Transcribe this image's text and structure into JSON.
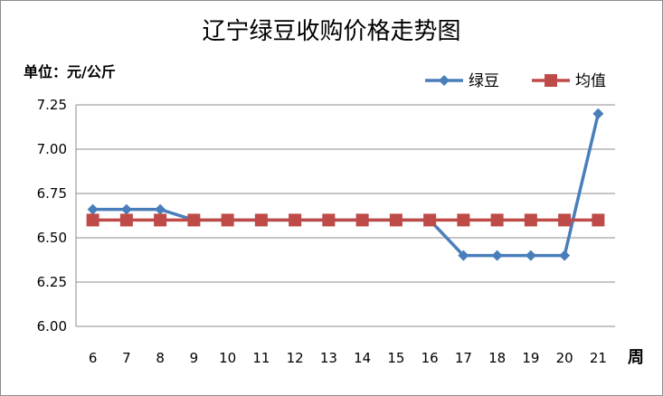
{
  "chart_data": {
    "type": "line",
    "title": "辽宁绿豆收购价格走势图",
    "unit_label": "单位：元/公斤",
    "xlabel": "周",
    "ylabel": "",
    "categories": [
      "6",
      "7",
      "8",
      "9",
      "10",
      "11",
      "12",
      "13",
      "14",
      "15",
      "16",
      "17",
      "18",
      "19",
      "20",
      "21"
    ],
    "ylim": [
      6.0,
      7.25
    ],
    "yticks": [
      "6.00",
      "6.25",
      "6.50",
      "6.75",
      "7.00",
      "7.25"
    ],
    "grid": "horizontal",
    "legend_position": "top-right",
    "series": [
      {
        "name": "绿豆",
        "color": "#4a7ebb",
        "marker": "diamond",
        "values": [
          6.66,
          6.66,
          6.66,
          6.6,
          6.6,
          6.6,
          6.6,
          6.6,
          6.6,
          6.6,
          6.6,
          6.4,
          6.4,
          6.4,
          6.4,
          7.2
        ]
      },
      {
        "name": "均值",
        "color": "#be4b48",
        "marker": "square",
        "values": [
          6.6,
          6.6,
          6.6,
          6.6,
          6.6,
          6.6,
          6.6,
          6.6,
          6.6,
          6.6,
          6.6,
          6.6,
          6.6,
          6.6,
          6.6,
          6.6
        ]
      }
    ]
  }
}
